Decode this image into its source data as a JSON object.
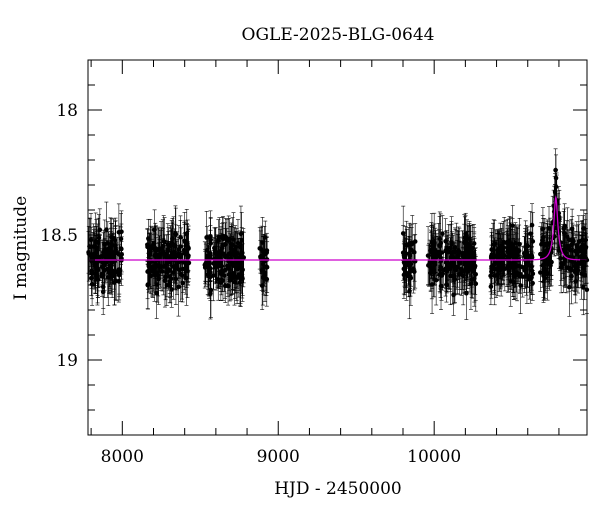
{
  "chart_data": {
    "type": "scatter",
    "title": "OGLE-2025-BLG-0644",
    "xlabel": "HJD - 2450000",
    "ylabel": "I magnitude",
    "xlim": [
      7780,
      10980
    ],
    "ylim": [
      19.3,
      17.8
    ],
    "y_inverted": true,
    "grid": false,
    "x_major_ticks": [
      8000,
      9000,
      10000
    ],
    "x_tick_labels": [
      "8000",
      "9000",
      "10000"
    ],
    "x_minor_step": 200,
    "y_major_ticks": [
      18,
      18.5,
      19
    ],
    "y_tick_labels": [
      "18",
      "18.5",
      "19"
    ],
    "y_minor_step": 0.1,
    "colors": {
      "points": "#000000",
      "model": "#cc00cc"
    },
    "seasons": [
      {
        "start": 7780,
        "end": 8000
      },
      {
        "start": 8160,
        "end": 8430
      },
      {
        "start": 8520,
        "end": 8780
      },
      {
        "start": 8880,
        "end": 8930
      },
      {
        "start": 9800,
        "end": 9880
      },
      {
        "start": 9960,
        "end": 10270
      },
      {
        "start": 10360,
        "end": 10640
      },
      {
        "start": 10680,
        "end": 10980
      }
    ],
    "baseline_mag": 18.6,
    "scatter_mag": 0.05,
    "error_bar_mag": 0.09,
    "model": {
      "baseline_mag": 18.6,
      "peak_time": 10780,
      "peak_mag": 18.35,
      "u0": 0.3,
      "tE": 40
    }
  }
}
